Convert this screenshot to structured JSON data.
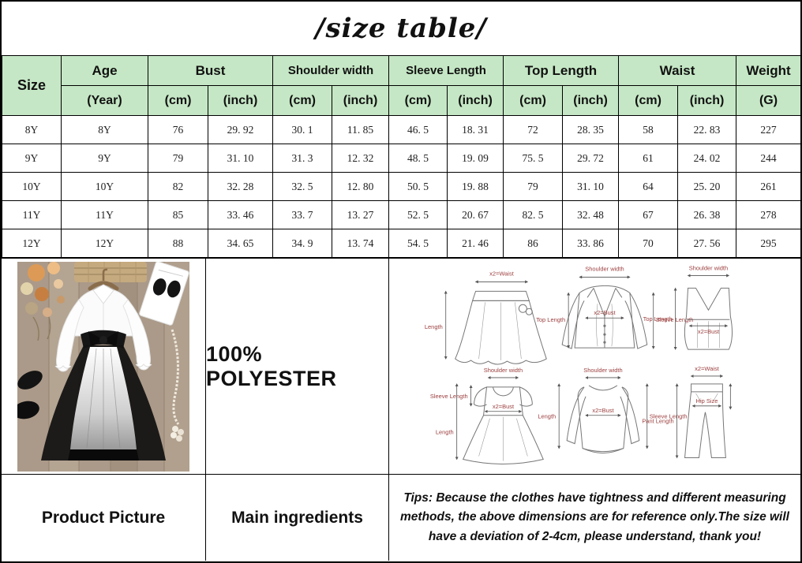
{
  "page": {
    "title": "/size table/"
  },
  "colors": {
    "header_green": "#c5e7c5",
    "diagram_label": "#9c3f3f",
    "border": "#000000"
  },
  "table": {
    "header": {
      "size": "Size",
      "age": "Age",
      "age_unit": "(Year)",
      "cm": "(cm)",
      "inch": "(inch)",
      "weight": "Weight",
      "weight_unit": "(G)",
      "groups": [
        {
          "label": "Bust"
        },
        {
          "label": "Shoulder width"
        },
        {
          "label": "Sleeve Length"
        },
        {
          "label": "Top Length"
        },
        {
          "label": "Waist"
        }
      ]
    },
    "rows": [
      [
        "8Y",
        "8Y",
        "76",
        "29. 92",
        "30. 1",
        "11. 85",
        "46. 5",
        "18. 31",
        "72",
        "28. 35",
        "58",
        "22. 83",
        "227"
      ],
      [
        "9Y",
        "9Y",
        "79",
        "31. 10",
        "31. 3",
        "12. 32",
        "48. 5",
        "19. 09",
        "75. 5",
        "29. 72",
        "61",
        "24. 02",
        "244"
      ],
      [
        "10Y",
        "10Y",
        "82",
        "32. 28",
        "32. 5",
        "12. 80",
        "50. 5",
        "19. 88",
        "79",
        "31. 10",
        "64",
        "25. 20",
        "261"
      ],
      [
        "11Y",
        "11Y",
        "85",
        "33. 46",
        "33. 7",
        "13. 27",
        "52. 5",
        "20. 67",
        "82. 5",
        "32. 48",
        "67",
        "26. 38",
        "278"
      ],
      [
        "12Y",
        "12Y",
        "88",
        "34. 65",
        "34. 9",
        "13. 74",
        "54. 5",
        "21. 46",
        "86",
        "33. 86",
        "70",
        "27. 56",
        "295"
      ]
    ]
  },
  "middle": {
    "material": "100% POLYESTER"
  },
  "diagrams": {
    "skirt": {
      "top": "x2=Waist",
      "left": "Length"
    },
    "jacket": {
      "top": "Shoulder width",
      "left": "Top Length",
      "bust": "x2=Bust",
      "right": "Sleeve Length"
    },
    "vest": {
      "top": "Shoulder width",
      "left": "Top Length",
      "bust": "x2=Bust"
    },
    "dress": {
      "top": "Shoulder width",
      "sleeve": "Sleeve Length",
      "bust": "x2=Bust",
      "left": "Length"
    },
    "sweater": {
      "top": "Shoulder width",
      "left": "Length",
      "bust": "x2=Bust",
      "right": "Sleeve Length"
    },
    "pants": {
      "top": "x2=Waist",
      "hip": "Hip Size",
      "left": "Pant Length"
    }
  },
  "bottom": {
    "product_picture_label": "Product Picture",
    "main_ingredients_label": "Main ingredients",
    "tips": "Tips: Because the clothes have tightness and different measuring methods, the above dimensions are for reference only.The size will have a deviation of 2-4cm, please understand, thank you!"
  }
}
